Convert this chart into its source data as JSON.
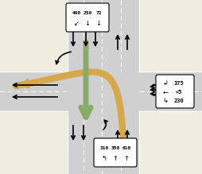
{
  "bg_color": "#f0ede0",
  "road_color": "#d0d0d0",
  "white": "#ffffff",
  "black": "#000000",
  "green_arrow_color": "#8aaa6a",
  "tan_arrow_color": "#d4a84b",
  "nb_volumes": [
    "490",
    "250",
    "72"
  ],
  "sb_volumes": [
    "310",
    "350",
    "610"
  ],
  "eb_volumes": [
    "375",
    "<5",
    "230"
  ],
  "nb_arrows": [
    "↙",
    "↓",
    "↓"
  ],
  "sb_arrows": [
    "↰",
    "↑",
    "↑"
  ],
  "eb_arrows": [
    "↲",
    "←",
    "↳"
  ]
}
